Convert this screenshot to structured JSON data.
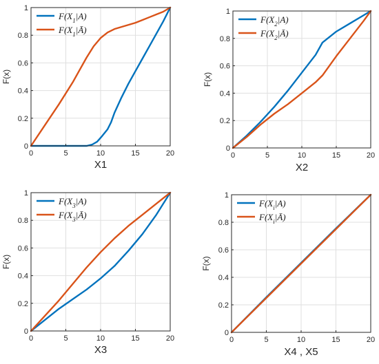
{
  "chart_data": [
    {
      "type": "line",
      "xlabel": "X1",
      "ylabel": "F(x)",
      "xlim": [
        0,
        20
      ],
      "ylim": [
        0,
        1
      ],
      "xticks": [
        0,
        5,
        10,
        15,
        20
      ],
      "yticks": [
        0,
        0.2,
        0.4,
        0.6,
        0.8,
        1
      ],
      "ytick_labels": [
        "0",
        "0.2",
        "0.4",
        "0.6",
        "0.8",
        "1"
      ],
      "grid": true,
      "legend_position": "top-left",
      "series": [
        {
          "name": "F(X1|A)",
          "var": "X",
          "sub": "1",
          "conditioning": "A",
          "color": "#0072BD",
          "x": [
            0,
            6,
            8,
            8.8,
            9.5,
            10.2,
            11,
            11.5,
            12,
            13,
            14,
            15,
            16,
            17,
            18,
            19,
            20
          ],
          "y": [
            0,
            0,
            0,
            0.01,
            0.03,
            0.07,
            0.12,
            0.17,
            0.24,
            0.35,
            0.45,
            0.54,
            0.63,
            0.72,
            0.81,
            0.9,
            1.0
          ]
        },
        {
          "name": "F(X1|Ā)",
          "var": "X",
          "sub": "1",
          "conditioning": "Ā",
          "color": "#D95319",
          "x": [
            0,
            2,
            4,
            6,
            7,
            8,
            9,
            10,
            11,
            12,
            13,
            14,
            15,
            16,
            17,
            18,
            19,
            20
          ],
          "y": [
            0,
            0.15,
            0.3,
            0.46,
            0.55,
            0.64,
            0.72,
            0.78,
            0.82,
            0.845,
            0.86,
            0.875,
            0.89,
            0.91,
            0.93,
            0.95,
            0.97,
            1.0
          ]
        }
      ]
    },
    {
      "type": "line",
      "xlabel": "X2",
      "ylabel": "F(x)",
      "xlim": [
        0,
        20
      ],
      "ylim": [
        0,
        1
      ],
      "xticks": [
        0,
        5,
        10,
        15,
        20
      ],
      "yticks": [
        0,
        0.2,
        0.4,
        0.6,
        0.8,
        1
      ],
      "ytick_labels": [
        "0",
        "0.2",
        "0.4",
        "0.6",
        "0.8",
        "1"
      ],
      "grid": true,
      "legend_position": "top-left",
      "series": [
        {
          "name": "F(X2|A)",
          "var": "X",
          "sub": "2",
          "conditioning": "A",
          "color": "#0072BD",
          "x": [
            0,
            2,
            4,
            6,
            8,
            10,
            12,
            13,
            15,
            17,
            19,
            20
          ],
          "y": [
            0,
            0.09,
            0.19,
            0.3,
            0.42,
            0.55,
            0.68,
            0.77,
            0.85,
            0.91,
            0.97,
            1.0
          ]
        },
        {
          "name": "F(X2|Ā)",
          "var": "X",
          "sub": "2",
          "conditioning": "Ā",
          "color": "#D95319",
          "x": [
            0,
            2,
            4,
            6,
            8,
            10,
            12,
            13,
            15,
            17,
            19,
            20
          ],
          "y": [
            0,
            0.08,
            0.17,
            0.25,
            0.32,
            0.4,
            0.48,
            0.53,
            0.67,
            0.8,
            0.93,
            1.0
          ]
        }
      ]
    },
    {
      "type": "line",
      "xlabel": "X3",
      "ylabel": "F(x)",
      "xlim": [
        0,
        20
      ],
      "ylim": [
        0,
        1
      ],
      "xticks": [
        0,
        5,
        10,
        15,
        20
      ],
      "yticks": [
        0,
        0.2,
        0.4,
        0.6,
        0.8,
        1
      ],
      "ytick_labels": [
        "0",
        "0.2",
        "0.4",
        "0.6",
        "0.8",
        "1"
      ],
      "grid": true,
      "legend_position": "top-left",
      "series": [
        {
          "name": "F(X3|A)",
          "var": "X",
          "sub": "3",
          "conditioning": "A",
          "color": "#0072BD",
          "x": [
            0,
            2,
            4,
            6,
            8,
            10,
            12,
            14,
            16,
            18,
            20
          ],
          "y": [
            0,
            0.08,
            0.16,
            0.23,
            0.3,
            0.38,
            0.47,
            0.58,
            0.7,
            0.84,
            1.0
          ]
        },
        {
          "name": "F(X3|Ā)",
          "var": "X",
          "sub": "3",
          "conditioning": "Ā",
          "color": "#D95319",
          "x": [
            0,
            2,
            4,
            6,
            8,
            10,
            12,
            14,
            16,
            18,
            20
          ],
          "y": [
            0,
            0.11,
            0.22,
            0.34,
            0.46,
            0.57,
            0.67,
            0.76,
            0.84,
            0.92,
            1.0
          ]
        }
      ]
    },
    {
      "type": "line",
      "xlabel": "X4 , X5",
      "ylabel": "F(x)",
      "xlim": [
        0,
        20
      ],
      "ylim": [
        0,
        1
      ],
      "xticks": [
        0,
        5,
        10,
        15,
        20
      ],
      "yticks": [
        0,
        0.2,
        0.4,
        0.6,
        0.8,
        1
      ],
      "ytick_labels": [
        "0",
        "0.2",
        "0.4",
        "0.6",
        "0.8",
        "1"
      ],
      "grid": true,
      "legend_position": "top-left",
      "series": [
        {
          "name": "F(Xi|A)",
          "var": "X",
          "sub": "i",
          "conditioning": "A",
          "color": "#0072BD",
          "x": [
            0,
            5,
            10,
            15,
            20
          ],
          "y": [
            0,
            0.255,
            0.505,
            0.755,
            1.0
          ]
        },
        {
          "name": "F(Xi|Ā)",
          "var": "X",
          "sub": "i",
          "conditioning": "Ā",
          "color": "#D95319",
          "x": [
            0,
            5,
            10,
            15,
            20
          ],
          "y": [
            0,
            0.25,
            0.5,
            0.75,
            1.0
          ]
        }
      ]
    }
  ]
}
